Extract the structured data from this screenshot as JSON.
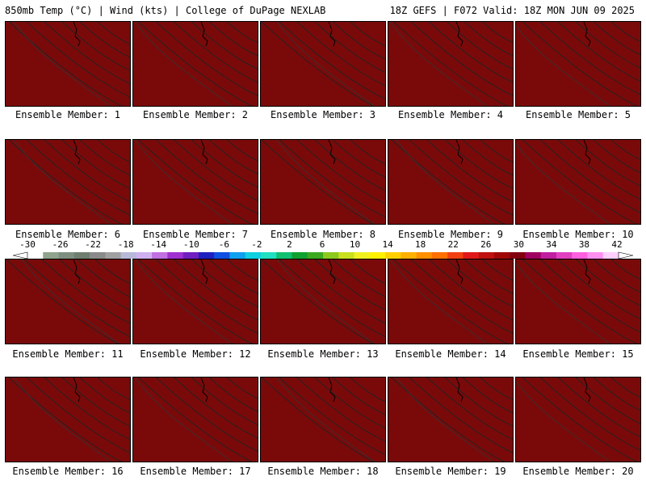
{
  "header": {
    "left_title": "850mb Temp (°C) | Wind (kts) | College of DuPage NEXLAB",
    "right_title": "18Z GEFS | F072 Valid: 18Z MON JUN 09 2025"
  },
  "members": [
    {
      "label": "Ensemble Member: 1",
      "style": 0
    },
    {
      "label": "Ensemble Member: 2",
      "style": 1
    },
    {
      "label": "Ensemble Member: 3",
      "style": 2
    },
    {
      "label": "Ensemble Member: 4",
      "style": 1
    },
    {
      "label": "Ensemble Member: 5",
      "style": 3
    },
    {
      "label": "Ensemble Member: 6",
      "style": 0
    },
    {
      "label": "Ensemble Member: 7",
      "style": 1
    },
    {
      "label": "Ensemble Member: 8",
      "style": 2
    },
    {
      "label": "Ensemble Member: 9",
      "style": 0
    },
    {
      "label": "Ensemble Member: 10",
      "style": 3
    },
    {
      "label": "Ensemble Member: 11",
      "style": 2
    },
    {
      "label": "Ensemble Member: 12",
      "style": 1
    },
    {
      "label": "Ensemble Member: 13",
      "style": 2
    },
    {
      "label": "Ensemble Member: 14",
      "style": 1
    },
    {
      "label": "Ensemble Member: 15",
      "style": 3
    },
    {
      "label": "Ensemble Member: 16",
      "style": 0
    },
    {
      "label": "Ensemble Member: 17",
      "style": 1
    },
    {
      "label": "Ensemble Member: 18",
      "style": 2
    },
    {
      "label": "Ensemble Member: 19",
      "style": 0
    },
    {
      "label": "Ensemble Member: 20",
      "style": 3
    }
  ],
  "colorbar": {
    "labels": [
      "-30",
      "-26",
      "-22",
      "-18",
      "-14",
      "-10",
      "-6",
      "-2",
      "2",
      "6",
      "10",
      "14",
      "18",
      "22",
      "26",
      "30",
      "34",
      "38",
      "42"
    ],
    "colors": [
      "#ffffff",
      "#8fa38f",
      "#7f8f7f",
      "#6f7f6f",
      "#8a8a8a",
      "#a0a0a0",
      "#b8b8d8",
      "#d0b0f0",
      "#c070e0",
      "#a030d0",
      "#7020c0",
      "#2020c0",
      "#1050e0",
      "#10a0f0",
      "#10d0e0",
      "#20e0c0",
      "#10c070",
      "#10a030",
      "#3ca81e",
      "#8cc81e",
      "#c8e01e",
      "#f0f020",
      "#fff000",
      "#ffd000",
      "#ffb000",
      "#ff9000",
      "#ff7000",
      "#f04010",
      "#e01818",
      "#c01010",
      "#a00808",
      "#800010",
      "#a00060",
      "#c020a0",
      "#e040c0",
      "#ff60e0",
      "#ff90f0",
      "#ffd0ff"
    ]
  }
}
